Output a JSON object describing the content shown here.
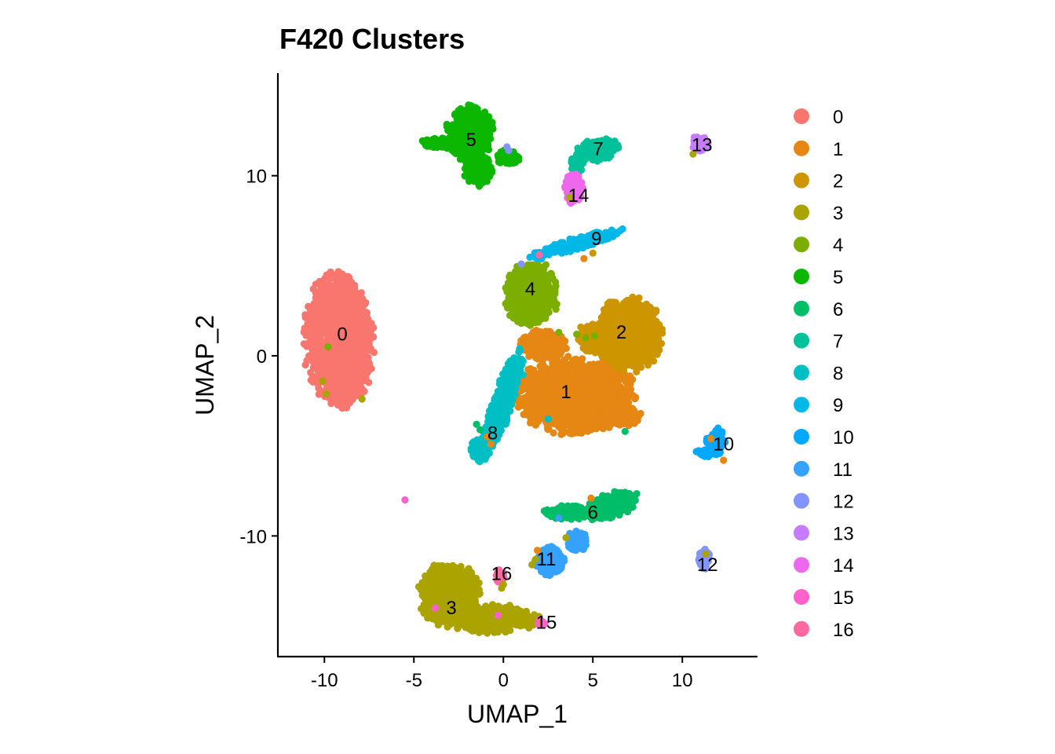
{
  "chart_data": {
    "type": "scatter",
    "title": "F420 Clusters",
    "xlabel": "UMAP_1",
    "ylabel": "UMAP_2",
    "xlim": [
      -12.6,
      14.2
    ],
    "ylim": [
      -16.7,
      15.7
    ],
    "xticks": [
      {
        "value": -10,
        "label": "-10"
      },
      {
        "value": -5,
        "label": "-5"
      },
      {
        "value": 0,
        "label": "0"
      },
      {
        "value": 5,
        "label": "5"
      },
      {
        "value": 10,
        "label": "10"
      }
    ],
    "yticks": [
      {
        "value": 10,
        "label": "10"
      },
      {
        "value": 0,
        "label": "0"
      },
      {
        "value": -10,
        "label": "-10"
      }
    ],
    "grid": false,
    "legend_position": "right",
    "series": [
      {
        "name": "0",
        "color": "#F8766D",
        "label_at": [
          -9.0,
          1.2
        ],
        "shape": [
          [
            -9.2,
            0.8,
            1.9,
            3.7,
            0.05
          ]
        ]
      },
      {
        "name": "1",
        "color": "#E68613",
        "label_at": [
          3.5,
          -2.0
        ],
        "shape": [
          [
            4.0,
            -2.2,
            3.3,
            2.1,
            0.0
          ],
          [
            2.3,
            0.6,
            1.3,
            0.9,
            0.0
          ],
          [
            6.8,
            -3.3,
            0.9,
            0.6,
            0.0
          ]
        ]
      },
      {
        "name": "2",
        "color": "#CD9600",
        "label_at": [
          6.6,
          1.3
        ],
        "shape": [
          [
            7.0,
            1.2,
            1.9,
            2.0,
            0.0
          ],
          [
            5.3,
            1.0,
            1.2,
            0.9,
            0.0
          ]
        ]
      },
      {
        "name": "3",
        "color": "#ABA300",
        "label_at": [
          -2.9,
          -14.0
        ],
        "shape": [
          [
            -3.0,
            -13.3,
            1.7,
            1.8,
            0.4
          ],
          [
            -0.5,
            -14.6,
            1.8,
            0.8,
            0.1
          ],
          [
            1.3,
            -14.7,
            0.9,
            0.4,
            0.0
          ]
        ]
      },
      {
        "name": "4",
        "color": "#7CAE00",
        "label_at": [
          1.5,
          3.7
        ],
        "shape": [
          [
            1.6,
            3.4,
            1.5,
            1.8,
            0.0
          ]
        ]
      },
      {
        "name": "5",
        "color": "#0CB702",
        "label_at": [
          -1.8,
          12.0
        ],
        "shape": [
          [
            -1.9,
            12.4,
            1.3,
            1.5,
            0.0
          ],
          [
            -1.4,
            10.3,
            0.8,
            0.9,
            0.0
          ],
          [
            -3.6,
            11.8,
            1.0,
            0.3,
            0.0
          ],
          [
            0.2,
            11.0,
            0.7,
            0.4,
            0.0
          ]
        ]
      },
      {
        "name": "6",
        "color": "#00BE67",
        "label_at": [
          5.0,
          -8.7
        ],
        "shape": [
          [
            6.0,
            -8.3,
            1.6,
            0.7,
            0.3
          ],
          [
            3.6,
            -8.7,
            1.4,
            0.4,
            0.0
          ]
        ]
      },
      {
        "name": "7",
        "color": "#00C19A",
        "label_at": [
          5.3,
          11.5
        ],
        "shape": [
          [
            5.2,
            11.4,
            1.3,
            0.6,
            0.25
          ],
          [
            4.1,
            10.6,
            0.4,
            0.5,
            0.0
          ]
        ]
      },
      {
        "name": "8",
        "color": "#00BFC4",
        "label_at": [
          -0.6,
          -4.3
        ],
        "shape": [
          [
            0.0,
            -2.5,
            0.6,
            3.0,
            -0.35
          ],
          [
            -1.3,
            -5.2,
            0.6,
            0.7,
            0.0
          ]
        ]
      },
      {
        "name": "9",
        "color": "#00B8E7",
        "label_at": [
          5.2,
          6.5
        ],
        "shape": [
          [
            4.0,
            6.2,
            2.7,
            0.35,
            0.28
          ]
        ]
      },
      {
        "name": "10",
        "color": "#00A9FF",
        "label_at": [
          12.3,
          -4.9
        ],
        "shape": [
          [
            11.9,
            -4.8,
            0.55,
            0.8,
            0.0
          ],
          [
            11.2,
            -5.4,
            0.5,
            0.25,
            0.0
          ]
        ]
      },
      {
        "name": "11",
        "color": "#35A2FF",
        "label_at": [
          2.4,
          -11.3
        ],
        "shape": [
          [
            2.6,
            -11.4,
            0.8,
            0.8,
            0.0
          ],
          [
            4.1,
            -10.3,
            0.6,
            0.6,
            0.0
          ]
        ]
      },
      {
        "name": "12",
        "color": "#8494FF",
        "label_at": [
          11.4,
          -11.6
        ],
        "shape": [
          [
            11.2,
            -11.3,
            0.35,
            0.6,
            0.0
          ]
        ]
      },
      {
        "name": "13",
        "color": "#C77CFF",
        "label_at": [
          11.1,
          11.7
        ],
        "shape": [
          [
            11.0,
            11.8,
            0.5,
            0.5,
            0.0
          ]
        ]
      },
      {
        "name": "14",
        "color": "#ED68ED",
        "label_at": [
          4.2,
          8.9
        ],
        "shape": [
          [
            3.9,
            9.3,
            0.55,
            0.9,
            0.0
          ]
        ]
      },
      {
        "name": "15",
        "color": "#FF61CC",
        "label_at": [
          2.4,
          -14.8
        ],
        "shape": [
          [
            2.1,
            -14.8,
            0.25,
            0.2,
            0.0
          ]
        ]
      },
      {
        "name": "16",
        "color": "#FF68A1",
        "label_at": [
          -0.1,
          -12.1
        ],
        "shape": [
          [
            -0.2,
            -12.2,
            0.3,
            0.4,
            0.0
          ]
        ]
      }
    ],
    "outliers": [
      {
        "x": -5.5,
        "y": -8.0,
        "series": "15"
      },
      {
        "x": -9.8,
        "y": 0.5,
        "series": "4"
      },
      {
        "x": -10.1,
        "y": -1.4,
        "series": "3"
      },
      {
        "x": -9.9,
        "y": -2.1,
        "series": "3"
      },
      {
        "x": -7.9,
        "y": -2.4,
        "series": "3"
      },
      {
        "x": 1.0,
        "y": 5.1,
        "series": "12"
      },
      {
        "x": 0.2,
        "y": 11.6,
        "series": "12"
      },
      {
        "x": 0.3,
        "y": 11.4,
        "series": "12"
      },
      {
        "x": 2.0,
        "y": 5.6,
        "series": "16"
      },
      {
        "x": 1.6,
        "y": -11.6,
        "series": "3"
      },
      {
        "x": 1.8,
        "y": -11.3,
        "series": "3"
      },
      {
        "x": 3.5,
        "y": -10.1,
        "series": "3"
      },
      {
        "x": -0.1,
        "y": -12.9,
        "series": "3"
      },
      {
        "x": 0.0,
        "y": -12.7,
        "series": "3"
      },
      {
        "x": -3.8,
        "y": -14.0,
        "series": "15"
      },
      {
        "x": -0.3,
        "y": -14.4,
        "series": "15"
      },
      {
        "x": 2.0,
        "y": -14.8,
        "series": "16"
      },
      {
        "x": 10.6,
        "y": 11.2,
        "series": "3"
      },
      {
        "x": 11.3,
        "y": -11.0,
        "series": "3"
      },
      {
        "x": 12.3,
        "y": -5.8,
        "series": "1"
      },
      {
        "x": 11.6,
        "y": -4.6,
        "series": "1"
      },
      {
        "x": 6.8,
        "y": -4.2,
        "series": "6"
      },
      {
        "x": 2.5,
        "y": -3.5,
        "series": "8"
      },
      {
        "x": 3.7,
        "y": 8.8,
        "series": "3"
      },
      {
        "x": 5.0,
        "y": 5.7,
        "series": "2"
      },
      {
        "x": 4.5,
        "y": 5.4,
        "series": "1"
      },
      {
        "x": -0.9,
        "y": -4.5,
        "series": "1"
      },
      {
        "x": -0.7,
        "y": -4.9,
        "series": "1"
      },
      {
        "x": -1.5,
        "y": -3.8,
        "series": "6"
      },
      {
        "x": -1.3,
        "y": -4.1,
        "series": "6"
      },
      {
        "x": 4.1,
        "y": 1.2,
        "series": "4"
      },
      {
        "x": 4.6,
        "y": 1.0,
        "series": "4"
      },
      {
        "x": 5.1,
        "y": 1.1,
        "series": "4"
      },
      {
        "x": 3.1,
        "y": 1.3,
        "series": "4"
      },
      {
        "x": 4.9,
        "y": -7.9,
        "series": "1"
      },
      {
        "x": 3.1,
        "y": -9.0,
        "series": "11"
      },
      {
        "x": 1.9,
        "y": -10.8,
        "series": "1"
      }
    ]
  }
}
